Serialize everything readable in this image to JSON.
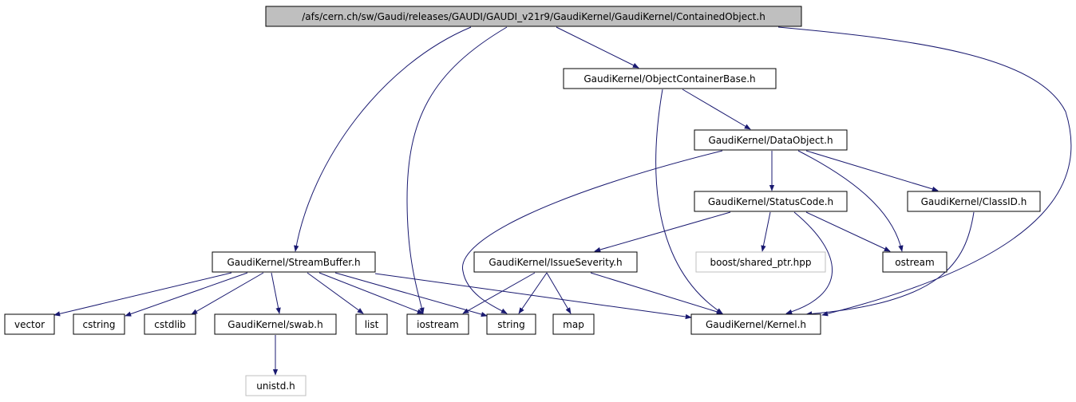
{
  "nodes": [
    {
      "label": "/afs/cern.ch/sw/Gaudi/releases/GAUDI/GAUDI_v21r9/GaudiKernel/GaudiKernel/ContainedObject.h"
    },
    {
      "label": "GaudiKernel/ObjectContainerBase.h"
    },
    {
      "label": "GaudiKernel/DataObject.h"
    },
    {
      "label": "GaudiKernel/StatusCode.h"
    },
    {
      "label": "GaudiKernel/ClassID.h"
    },
    {
      "label": "GaudiKernel/StreamBuffer.h"
    },
    {
      "label": "GaudiKernel/IssueSeverity.h"
    },
    {
      "label": "boost/shared_ptr.hpp"
    },
    {
      "label": "ostream"
    },
    {
      "label": "vector"
    },
    {
      "label": "cstring"
    },
    {
      "label": "cstdlib"
    },
    {
      "label": "GaudiKernel/swab.h"
    },
    {
      "label": "list"
    },
    {
      "label": "iostream"
    },
    {
      "label": "string"
    },
    {
      "label": "map"
    },
    {
      "label": "GaudiKernel/Kernel.h"
    },
    {
      "label": "unistd.h"
    }
  ]
}
